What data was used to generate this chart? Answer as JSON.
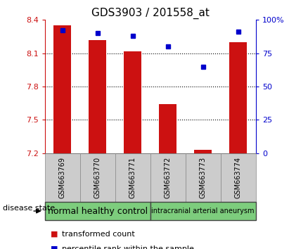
{
  "title": "GDS3903 / 201558_at",
  "samples": [
    "GSM663769",
    "GSM663770",
    "GSM663771",
    "GSM663772",
    "GSM663773",
    "GSM663774"
  ],
  "transformed_count": [
    8.35,
    8.22,
    8.12,
    7.64,
    7.23,
    8.2
  ],
  "percentile_rank": [
    92,
    90,
    88,
    80,
    65,
    91
  ],
  "ylim_left": [
    7.2,
    8.4
  ],
  "ylim_right": [
    0,
    100
  ],
  "yticks_left": [
    7.2,
    7.5,
    7.8,
    8.1,
    8.4
  ],
  "yticks_right": [
    0,
    25,
    50,
    75,
    100
  ],
  "bar_color": "#cc1111",
  "dot_color": "#0000cc",
  "bg_color_plot": "#ffffff",
  "bg_color_xticklabels": "#cccccc",
  "group1_label": "normal healthy control",
  "group2_label": "intracranial arterial aneurysm",
  "group1_color": "#7dcd7d",
  "group2_color": "#7dcd7d",
  "disease_state_label": "disease state",
  "legend_bar_label": "transformed count",
  "legend_dot_label": "percentile rank within the sample",
  "bar_width": 0.5,
  "grid_color": "#000000",
  "grid_linestyle": "dotted",
  "grid_linewidth": 0.8,
  "ytick_fontsize": 8,
  "xtick_fontsize": 7,
  "title_fontsize": 11,
  "legend_fontsize": 8,
  "group_label_fontsize1": 9,
  "group_label_fontsize2": 7
}
